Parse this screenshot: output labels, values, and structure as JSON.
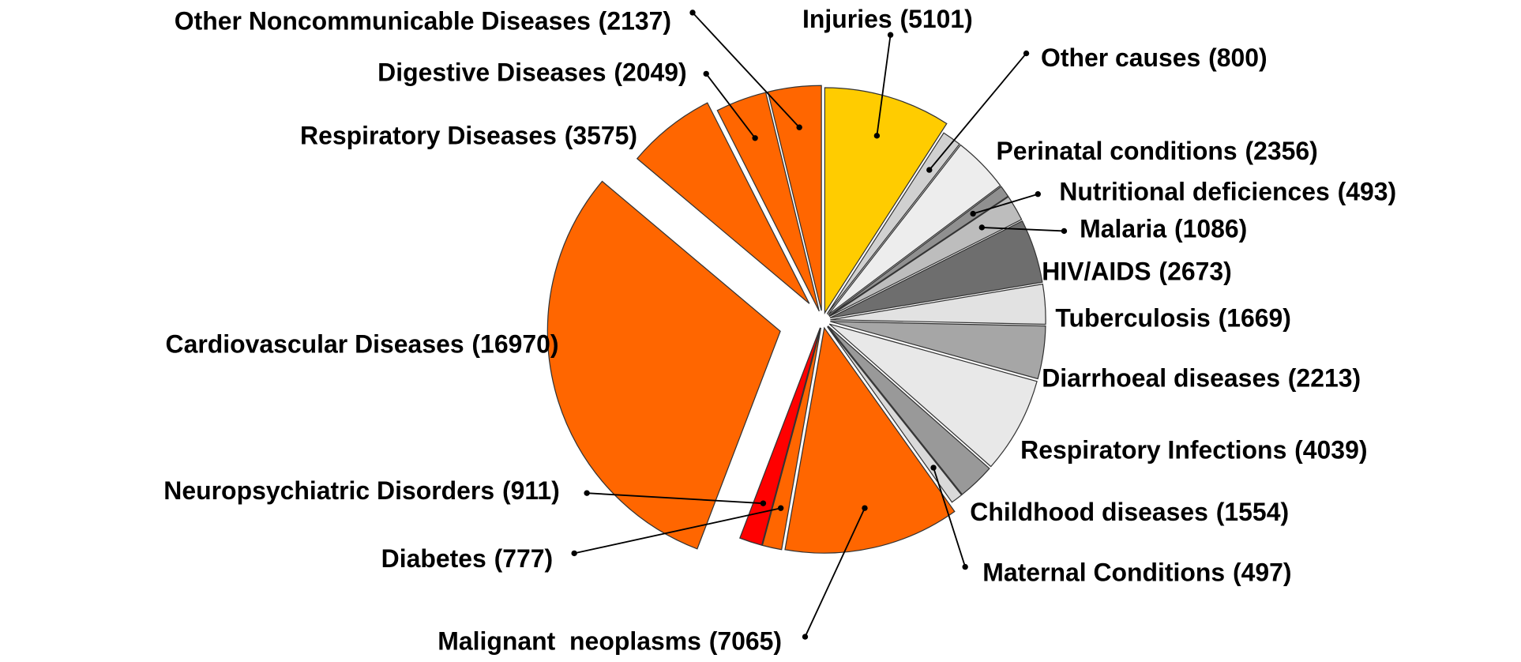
{
  "chart_data": {
    "type": "pie",
    "categories": [
      "Injuries",
      "Other causes",
      "Perinatal conditions",
      "Nutritional deficiences",
      "Malaria",
      "HIV/AIDS",
      "Tuberculosis",
      "Diarrhoeal diseases",
      "Respiratory Infections",
      "Childhood diseases",
      "Maternal Conditions",
      "Malignant  neoplasms",
      "Diabetes",
      "Neuropsychiatric Disorders",
      "Cardiovascular Diseases",
      "Respiratory Diseases",
      "Digestive Diseases",
      "Other Noncommunicable Diseases"
    ],
    "values": [
      5101,
      800,
      2356,
      493,
      1086,
      2673,
      1669,
      2213,
      4039,
      1554,
      497,
      7065,
      777,
      911,
      16970,
      3575,
      2049,
      2137
    ],
    "value_labels": [
      "(5101)",
      "(800)",
      "(2356)",
      "(493)",
      "(1086)",
      "(2673)",
      "(1669)",
      "(2213)",
      "(4039)",
      "(1554)",
      "(497)",
      "(7065)",
      "(777)",
      "(911)",
      "(16970)",
      "(3575)",
      "(2049)",
      "(2137)"
    ],
    "colors": [
      "#FFCC00",
      "#D0D0D0",
      "#EDEDED",
      "#909090",
      "#BDBDBD",
      "#6E6E6E",
      "#E2E2E2",
      "#A6A6A6",
      "#E8E8E8",
      "#999999",
      "#DADADA",
      "#FF6600",
      "#FF6600",
      "#FF0000",
      "#FF6600",
      "#FF6600",
      "#FF6600",
      "#FF6600"
    ]
  }
}
